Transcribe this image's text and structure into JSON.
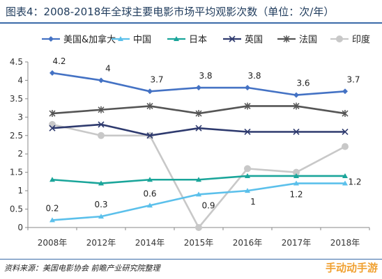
{
  "title": "图表4：2008-2018年全球主要电影市场平均观影次数（单位：次/年）",
  "source": "资料来源：美国电影协会 前瞻产业研究院整理",
  "watermark": "手动动手游",
  "chart_data": {
    "type": "line",
    "categories": [
      "2008年",
      "2012年",
      "2014年",
      "2015年",
      "2016年",
      "2017年",
      "2018年"
    ],
    "ylim": [
      0,
      4.5
    ],
    "yticks": [
      "0",
      "0.5",
      "1",
      "1.5",
      "2",
      "2.5",
      "3",
      "3.5",
      "4",
      "4.5"
    ],
    "legend_position": "top",
    "grid": false,
    "series": [
      {
        "name": "美国&加拿大",
        "values": [
          4.2,
          4.0,
          3.7,
          3.8,
          3.8,
          3.6,
          3.7
        ],
        "color": "#4472c4",
        "marker": "diamond",
        "labels": [
          "4.2",
          "4",
          "3.7",
          "3.8",
          "3.8",
          "3.6",
          "3.7"
        ]
      },
      {
        "name": "中国",
        "values": [
          0.2,
          0.3,
          0.6,
          0.9,
          1.0,
          1.2,
          1.2
        ],
        "color": "#5bc0eb",
        "marker": "triangle",
        "labels": [
          "0.2",
          "0.3",
          "0.6",
          "0.9",
          "1",
          "1.2",
          "1.2"
        ]
      },
      {
        "name": "日本",
        "values": [
          1.3,
          1.2,
          1.3,
          1.3,
          1.4,
          1.4,
          1.4
        ],
        "color": "#1aa59a",
        "marker": "triangle"
      },
      {
        "name": "英国",
        "values": [
          2.7,
          2.8,
          2.5,
          2.7,
          2.6,
          2.6,
          2.6
        ],
        "color": "#2e3a6e",
        "marker": "x"
      },
      {
        "name": "法国",
        "values": [
          3.1,
          3.2,
          3.3,
          3.1,
          3.3,
          3.3,
          3.1
        ],
        "color": "#555555",
        "marker": "star"
      },
      {
        "name": "印度",
        "values": [
          2.8,
          2.5,
          2.5,
          0.0,
          1.6,
          1.5,
          2.2
        ],
        "color": "#c8c8c8",
        "marker": "circle"
      }
    ]
  }
}
